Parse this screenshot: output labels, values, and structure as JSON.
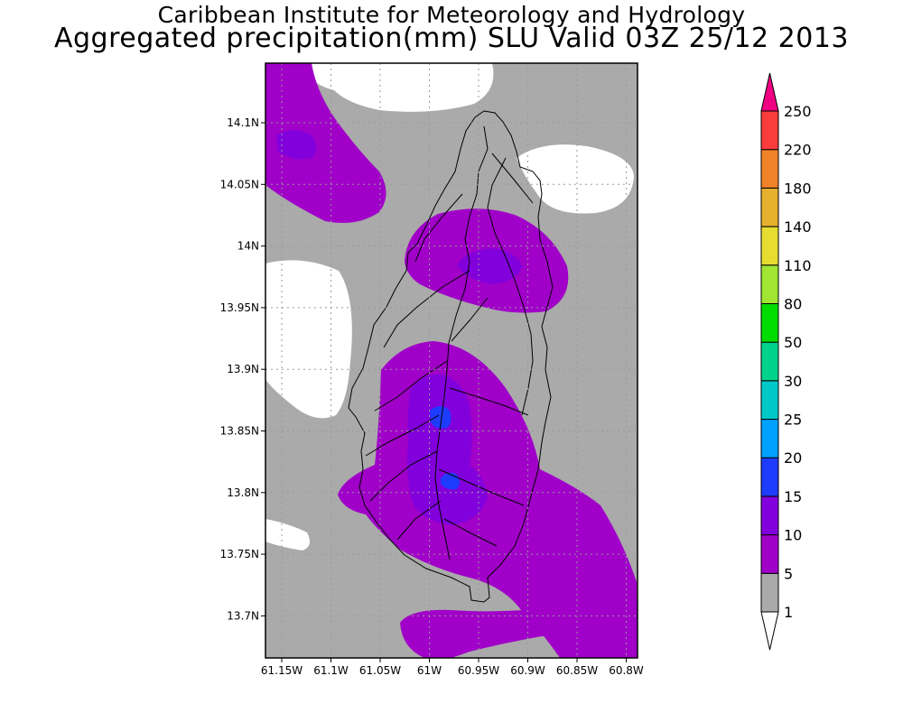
{
  "header": {
    "line1": "Caribbean Institute for Meteorology and Hydrology",
    "line2": "Aggregated precipitation(mm) SLU Valid 03Z 25/12 2013"
  },
  "map": {
    "lat_labels": [
      "14.1N",
      "14.05N",
      "14N",
      "13.95N",
      "13.9N",
      "13.85N",
      "13.8N",
      "13.75N",
      "13.7N"
    ],
    "lon_labels": [
      "61.15W",
      "61.1W",
      "61.05W",
      "61W",
      "60.95W",
      "60.9W",
      "60.85W",
      "60.8W"
    ],
    "colors": {
      "background": "#aaaaaa",
      "no_rain": "#ffffff",
      "band_5_10": "#a000c8",
      "band_10_15": "#8200dc",
      "band_15_20": "#1e3cff",
      "band_20_25": "#00a0ff"
    }
  },
  "colorbar": {
    "levels": [
      "1",
      "5",
      "10",
      "15",
      "20",
      "25",
      "30",
      "50",
      "80",
      "110",
      "140",
      "180",
      "220",
      "250"
    ],
    "colors": [
      "#aaaaaa",
      "#a000c8",
      "#8200dc",
      "#1e3cff",
      "#00a0ff",
      "#00c8c8",
      "#00d28c",
      "#00dc00",
      "#a0e632",
      "#e6dc32",
      "#e6af2d",
      "#f08228",
      "#fa3c3c",
      "#f00082"
    ],
    "under_color": "#ffffff",
    "over_color": "#f00082"
  }
}
